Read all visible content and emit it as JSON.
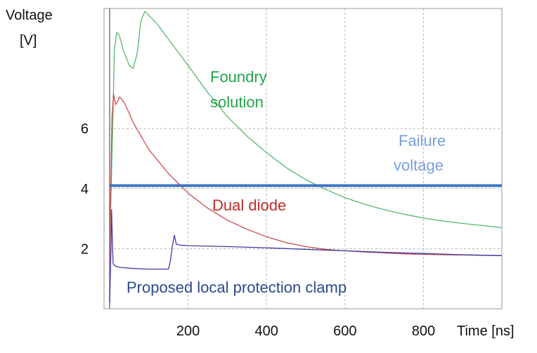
{
  "chart_data": {
    "type": "line",
    "ylabel_line1": "Voltage",
    "ylabel_line2": "[V]",
    "xlabel": "Time [ns]",
    "xlim": [
      0,
      1000
    ],
    "ylim": [
      0,
      10
    ],
    "grid": true,
    "x_ticks": [
      200,
      400,
      600,
      800
    ],
    "y_ticks": [
      2,
      4,
      6
    ],
    "threshold": {
      "value": 4.1,
      "label_line1": "Failure",
      "label_line2": "voltage",
      "color": "#3f72c4"
    },
    "annotations": [
      {
        "id": "foundry",
        "line1": "Foundry",
        "line2": "solution",
        "color": "#21a44a"
      },
      {
        "id": "dual",
        "line1": "Dual diode",
        "line2": "",
        "color": "#c32a27"
      },
      {
        "id": "proposed",
        "line1": "Proposed local protection clamp",
        "line2": "",
        "color": "#2b4a8e"
      }
    ],
    "series": [
      {
        "color": "#55b86b",
        "x": [
          0,
          8,
          12,
          18,
          25,
          35,
          50,
          60,
          70,
          80,
          90,
          120,
          160,
          200,
          250,
          300,
          350,
          400,
          450,
          500,
          550,
          600,
          650,
          700,
          750,
          800,
          850,
          900,
          950,
          1000
        ],
        "y": [
          2.0,
          6.2,
          8.6,
          9.2,
          9.1,
          8.6,
          8.1,
          8.0,
          8.5,
          9.6,
          9.9,
          9.5,
          8.8,
          8.1,
          7.2,
          6.4,
          5.75,
          5.2,
          4.7,
          4.3,
          3.98,
          3.7,
          3.48,
          3.3,
          3.15,
          3.02,
          2.92,
          2.84,
          2.77,
          2.7
        ]
      },
      {
        "color": "#cc4b4b",
        "x": [
          0,
          6,
          10,
          15,
          20,
          25,
          30,
          40,
          60,
          100,
          150,
          200,
          250,
          300,
          350,
          400,
          450,
          500,
          550,
          600,
          650,
          700,
          750,
          800,
          850,
          900,
          950,
          1000
        ],
        "y": [
          1.5,
          6.4,
          7.15,
          6.8,
          6.9,
          7.05,
          7.0,
          6.8,
          6.2,
          5.3,
          4.5,
          3.85,
          3.35,
          2.95,
          2.65,
          2.4,
          2.2,
          2.07,
          1.98,
          1.93,
          1.89,
          1.86,
          1.83,
          1.81,
          1.8,
          1.79,
          1.78,
          1.77
        ]
      },
      {
        "color": "#3d3da6",
        "x": [
          0,
          3,
          5,
          7,
          9,
          12,
          15,
          25,
          50,
          100,
          150,
          155,
          160,
          165,
          170,
          180,
          200,
          300,
          400,
          500,
          600,
          700,
          800,
          900,
          1000
        ],
        "y": [
          0.2,
          1.8,
          3.3,
          2.2,
          1.5,
          1.45,
          1.42,
          1.38,
          1.35,
          1.32,
          1.32,
          1.6,
          2.1,
          2.45,
          2.15,
          2.12,
          2.1,
          2.07,
          2.03,
          1.98,
          1.93,
          1.88,
          1.84,
          1.8,
          1.77
        ]
      }
    ]
  }
}
